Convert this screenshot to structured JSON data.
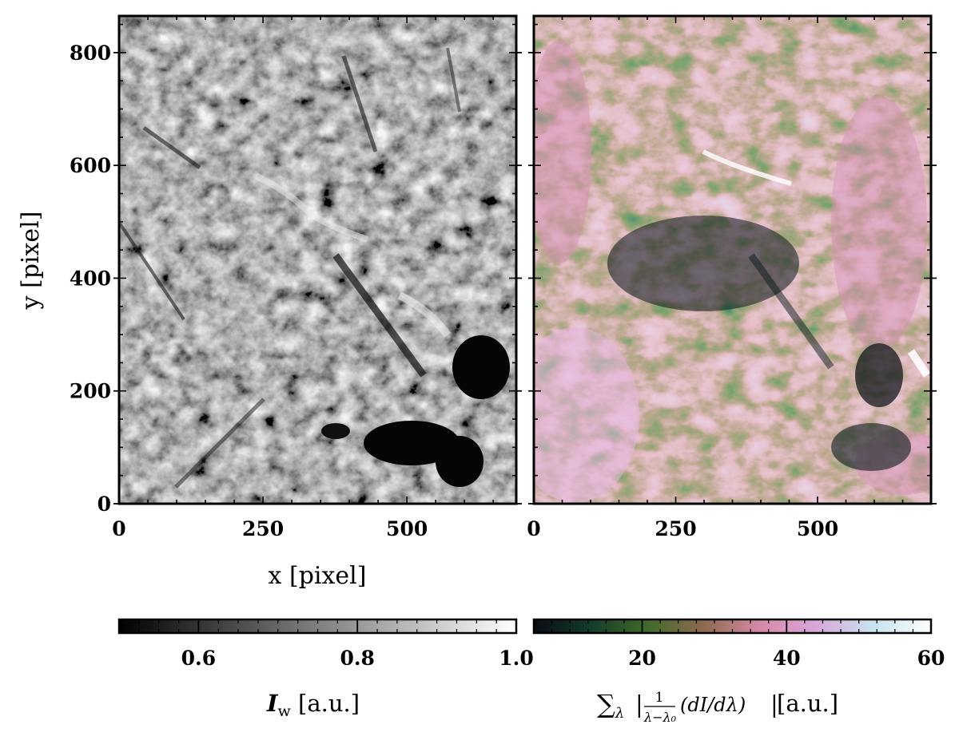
{
  "panels": {
    "left": {
      "x_ticks": [
        "0",
        "250",
        "500"
      ],
      "x_tick_values": [
        0,
        250,
        500
      ],
      "y_ticks": [
        "0",
        "200",
        "400",
        "600",
        "800"
      ],
      "y_tick_values": [
        0,
        200,
        400,
        600,
        800
      ],
      "xlim": [
        0,
        690
      ],
      "ylim": [
        0,
        865
      ],
      "xlabel": "x [pixel]",
      "ylabel": "y [pixel]",
      "colormap": "grayscale"
    },
    "right": {
      "x_ticks": [
        "0",
        "250",
        "500"
      ],
      "x_tick_values": [
        0,
        250,
        500
      ],
      "xlim": [
        0,
        700
      ],
      "ylim": [
        0,
        865
      ],
      "colormap": "cubehelix-like (dark green to pink to white)"
    }
  },
  "colorbars": {
    "left": {
      "ticks": [
        "0.6",
        "0.8",
        "1.0"
      ],
      "tick_values": [
        0.6,
        0.8,
        1.0
      ],
      "range": [
        0.5,
        1.0
      ],
      "label_main": "I",
      "label_sub": "w",
      "label_rest": " [a.u.]",
      "colors": [
        "#000000",
        "#ffffff"
      ]
    },
    "right": {
      "ticks": [
        "20",
        "40",
        "60"
      ],
      "tick_values": [
        20,
        40,
        60
      ],
      "range": [
        5,
        60
      ],
      "label_sum": "∑",
      "label_lambda": "λ",
      "label_frac_num": "1",
      "label_frac_den": "λ−λ₀",
      "label_deriv": "(dI/dλ)",
      "label_rest": " [a.u.]",
      "colors": [
        "#0a0a14",
        "#143c2a",
        "#3f6a2a",
        "#8f6a50",
        "#d889a8",
        "#d8a8dc",
        "#c8e4f0",
        "#ffffff"
      ]
    }
  }
}
